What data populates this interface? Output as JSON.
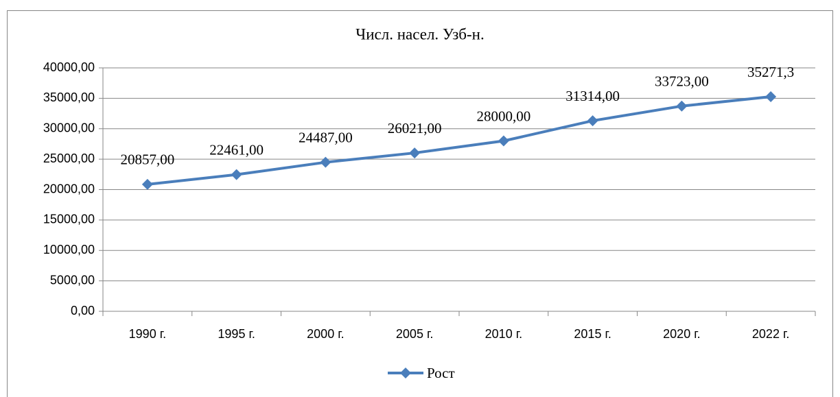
{
  "chart_data": {
    "type": "line",
    "title": "Числ. насел. Узб-н.",
    "categories": [
      "1990 г.",
      "1995 г.",
      "2000 г.",
      "2005 г.",
      "2010 г.",
      "2015 г.",
      "2020 г.",
      "2022 г."
    ],
    "series": [
      {
        "name": "Рост",
        "color": "#4a7ebb",
        "values": [
          20857,
          22461,
          24487,
          26021,
          28000,
          31314,
          33723,
          35271.3
        ],
        "value_labels": [
          "20857,00",
          "22461,00",
          "24487,00",
          "26021,00",
          "28000,00",
          "31314,00",
          "33723,00",
          "35271,3"
        ]
      }
    ],
    "ylim": [
      0,
      40000
    ],
    "yticks": [
      {
        "value": 0,
        "label": "0,00"
      },
      {
        "value": 5000,
        "label": "5000,00"
      },
      {
        "value": 10000,
        "label": "10000,00"
      },
      {
        "value": 15000,
        "label": "15000,00"
      },
      {
        "value": 20000,
        "label": "20000,00"
      },
      {
        "value": 25000,
        "label": "25000,00"
      },
      {
        "value": 30000,
        "label": "30000,00"
      },
      {
        "value": 35000,
        "label": "35000,00"
      },
      {
        "value": 40000,
        "label": "40000,00"
      }
    ],
    "grid": true,
    "legend": "bottom"
  }
}
